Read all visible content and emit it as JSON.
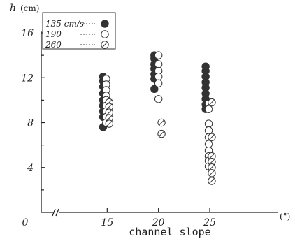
{
  "chart_data": {
    "type": "scatter",
    "ylabel": "h",
    "yunit": "(cm)",
    "xlabel": "channel slope",
    "xunit": "(°)",
    "xlim": [
      0,
      28
    ],
    "ylim": [
      0,
      16
    ],
    "x_origin_label": "0",
    "xticks": [
      15,
      20,
      25
    ],
    "yticks": [
      4,
      8,
      12,
      16
    ],
    "legend_placement": "top-left",
    "series": [
      {
        "name": "135 cm/s",
        "marker": "filled",
        "color": "#333333",
        "points": [
          [
            14.6,
            12.1
          ],
          [
            14.6,
            11.7
          ],
          [
            14.6,
            11.2
          ],
          [
            14.6,
            10.6
          ],
          [
            14.6,
            10.0
          ],
          [
            14.6,
            9.5
          ],
          [
            14.6,
            9.0
          ],
          [
            14.6,
            8.5
          ],
          [
            14.6,
            7.6
          ],
          [
            19.6,
            14.0
          ],
          [
            19.6,
            13.7
          ],
          [
            19.6,
            13.2
          ],
          [
            19.6,
            12.8
          ],
          [
            19.6,
            12.3
          ],
          [
            19.6,
            11.9
          ],
          [
            19.6,
            11.0
          ],
          [
            24.6,
            13.0
          ],
          [
            24.6,
            12.6
          ],
          [
            24.6,
            12.1
          ],
          [
            24.6,
            11.6
          ],
          [
            24.6,
            11.1
          ],
          [
            24.6,
            10.6
          ],
          [
            24.6,
            10.1
          ],
          [
            24.6,
            9.6
          ],
          [
            24.6,
            9.2
          ]
        ]
      },
      {
        "name": "190",
        "marker": "open",
        "color": "#333333",
        "points": [
          [
            14.9,
            11.9
          ],
          [
            14.9,
            11.4
          ],
          [
            14.9,
            10.9
          ],
          [
            14.9,
            10.4
          ],
          [
            14.9,
            10.0
          ],
          [
            14.9,
            9.5
          ],
          [
            14.9,
            9.0
          ],
          [
            14.9,
            8.5
          ],
          [
            14.9,
            8.0
          ],
          [
            20.0,
            14.0
          ],
          [
            20.0,
            13.2
          ],
          [
            20.0,
            12.6
          ],
          [
            20.0,
            12.1
          ],
          [
            20.0,
            11.5
          ],
          [
            20.0,
            10.1
          ],
          [
            24.9,
            9.7
          ],
          [
            24.9,
            9.2
          ],
          [
            24.9,
            7.9
          ],
          [
            24.9,
            7.3
          ],
          [
            24.9,
            6.7
          ],
          [
            24.9,
            6.1
          ],
          [
            24.9,
            5.5
          ],
          [
            24.9,
            5.0
          ],
          [
            24.9,
            4.6
          ],
          [
            24.9,
            4.1
          ]
        ]
      },
      {
        "name": "260",
        "marker": "hatched",
        "color": "#333333",
        "points": [
          [
            15.2,
            9.8
          ],
          [
            15.2,
            9.4
          ],
          [
            15.2,
            8.9
          ],
          [
            15.2,
            8.4
          ],
          [
            15.2,
            7.9
          ],
          [
            20.3,
            8.0
          ],
          [
            20.3,
            7.0
          ],
          [
            25.2,
            9.8
          ],
          [
            25.2,
            6.7
          ],
          [
            25.2,
            5.0
          ],
          [
            25.2,
            4.5
          ],
          [
            25.2,
            4.0
          ],
          [
            25.2,
            3.5
          ],
          [
            25.2,
            2.8
          ]
        ]
      }
    ]
  }
}
